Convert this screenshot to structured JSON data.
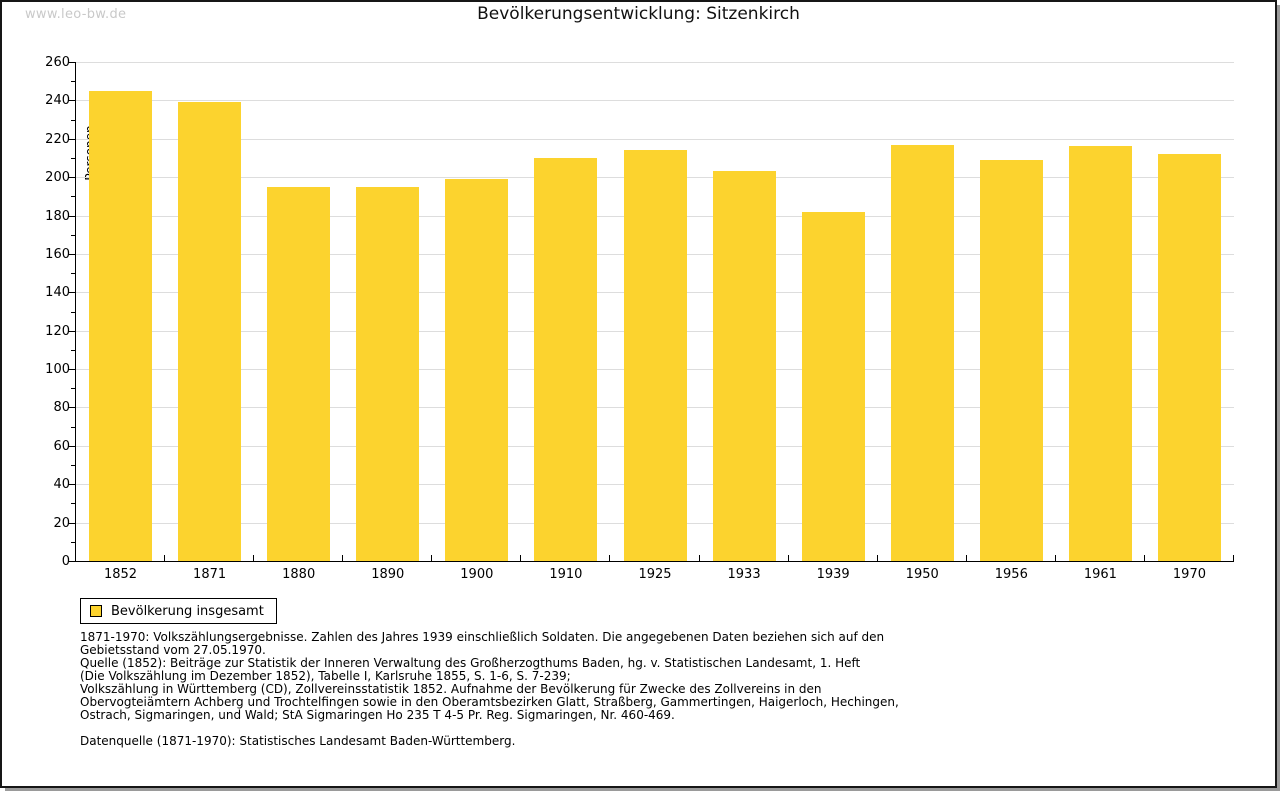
{
  "watermark": "www.leo-bw.de",
  "title": "Bevölkerungsentwicklung: Sitzenkirch",
  "chart_data": {
    "type": "bar",
    "title": "Bevölkerungsentwicklung: Sitzenkirch",
    "xlabel": "",
    "ylabel": "Personen",
    "categories": [
      "1852",
      "1871",
      "1880",
      "1890",
      "1900",
      "1910",
      "1925",
      "1933",
      "1939",
      "1950",
      "1956",
      "1961",
      "1970"
    ],
    "values": [
      245,
      239,
      195,
      195,
      199,
      210,
      214,
      203,
      182,
      217,
      209,
      216,
      212
    ],
    "ylim": [
      0,
      260
    ],
    "ytick_step": 20,
    "y_minor_step": 10,
    "grid": true,
    "legend_position": "bottom-left",
    "bar_color": "#FCD32E",
    "grid_color": "#dddddd",
    "axis_color": "#000000"
  },
  "legend": {
    "label": "Bevölkerung insgesamt",
    "swatch_color": "#FCD32E"
  },
  "footer": {
    "lines": [
      "1871-1970: Volkszählungsergebnisse. Zahlen des Jahres 1939 einschließlich Soldaten. Die angegebenen Daten beziehen sich auf den",
      "Gebietsstand vom 27.05.1970.",
      "Quelle (1852): Beiträge zur Statistik der Inneren Verwaltung des Großherzogthums Baden, hg. v. Statistischen Landesamt, 1. Heft",
      "(Die Volkszählung im Dezember 1852), Tabelle I, Karlsruhe 1855, S. 1-6, S. 7-239;",
      "Volkszählung in Württemberg (CD), Zollvereinsstatistik 1852. Aufnahme der Bevölkerung für Zwecke des Zollvereins in den",
      "Obervogteiämtern Achberg und Trochtelfingen sowie in den Oberamtsbezirken Glatt, Straßberg, Gammertingen, Haigerloch, Hechingen,",
      "Ostrach, Sigmaringen, und Wald; StA Sigmaringen Ho 235 T 4-5 Pr. Reg. Sigmaringen, Nr. 460-469."
    ],
    "datasource": "Datenquelle (1871-1970): Statistisches Landesamt Baden-Württemberg."
  }
}
